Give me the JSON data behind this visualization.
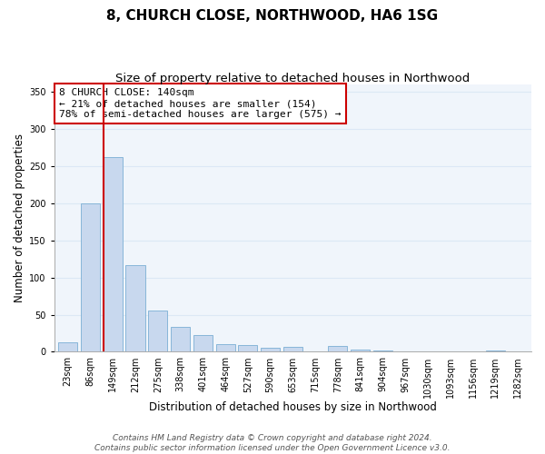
{
  "title": "8, CHURCH CLOSE, NORTHWOOD, HA6 1SG",
  "subtitle": "Size of property relative to detached houses in Northwood",
  "xlabel": "Distribution of detached houses by size in Northwood",
  "ylabel": "Number of detached properties",
  "bar_labels": [
    "23sqm",
    "86sqm",
    "149sqm",
    "212sqm",
    "275sqm",
    "338sqm",
    "401sqm",
    "464sqm",
    "527sqm",
    "590sqm",
    "653sqm",
    "715sqm",
    "778sqm",
    "841sqm",
    "904sqm",
    "967sqm",
    "1030sqm",
    "1093sqm",
    "1156sqm",
    "1219sqm",
    "1282sqm"
  ],
  "bar_values": [
    13,
    200,
    262,
    117,
    55,
    33,
    23,
    10,
    9,
    6,
    7,
    0,
    8,
    3,
    2,
    0,
    0,
    0,
    0,
    2,
    0
  ],
  "bar_color": "#c8d8ee",
  "bar_edge_color": "#7bafd4",
  "highlight_bar_index": 2,
  "vline_color": "#cc0000",
  "ylim": [
    0,
    360
  ],
  "yticks": [
    0,
    50,
    100,
    150,
    200,
    250,
    300,
    350
  ],
  "annotation_title": "8 CHURCH CLOSE: 140sqm",
  "annotation_line1": "← 21% of detached houses are smaller (154)",
  "annotation_line2": "78% of semi-detached houses are larger (575) →",
  "annotation_box_facecolor": "#ffffff",
  "annotation_box_edgecolor": "#cc0000",
  "footer_line1": "Contains HM Land Registry data © Crown copyright and database right 2024.",
  "footer_line2": "Contains public sector information licensed under the Open Government Licence v3.0.",
  "grid_color": "#dce8f5",
  "background_color": "#f0f5fb",
  "title_fontsize": 11,
  "subtitle_fontsize": 9.5,
  "axis_label_fontsize": 8.5,
  "tick_fontsize": 7,
  "annotation_fontsize": 8,
  "footer_fontsize": 6.5
}
